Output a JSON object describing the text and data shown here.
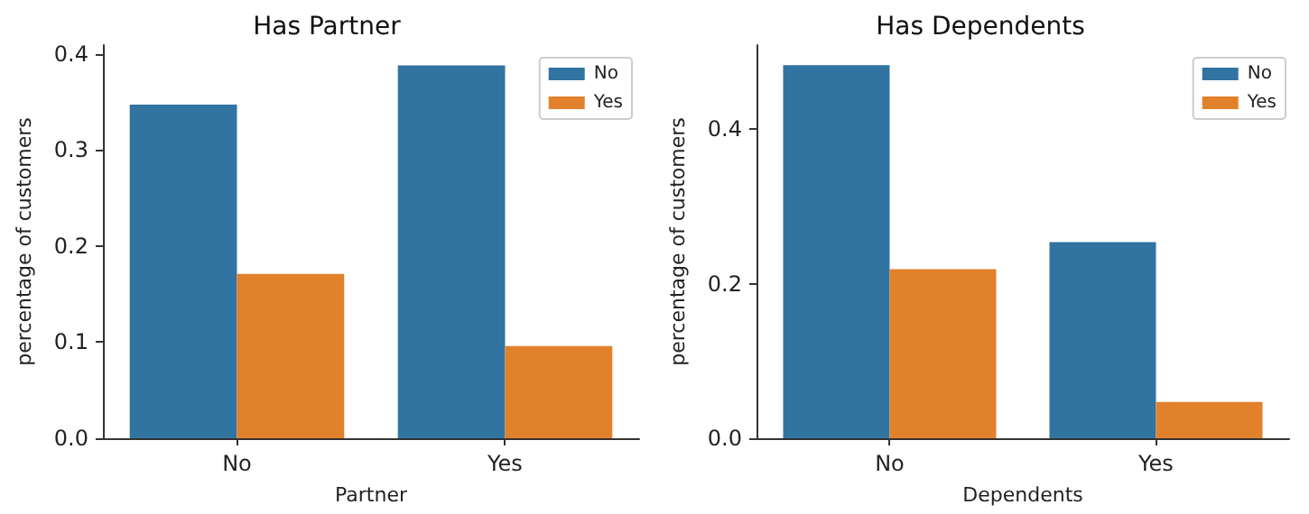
{
  "chart_data": [
    {
      "type": "bar",
      "title": "Has Partner",
      "xlabel": "Partner",
      "ylabel": "percentage of customers",
      "categories": [
        "No",
        "Yes"
      ],
      "series": [
        {
          "name": "No",
          "color": "#3274a1",
          "values": [
            0.347,
            0.388
          ]
        },
        {
          "name": "Yes",
          "color": "#e1812c",
          "values": [
            0.171,
            0.096
          ]
        }
      ],
      "ylim": [
        0,
        0.409
      ],
      "yticks": [
        {
          "value": 0,
          "label": "0.0"
        },
        0.1,
        0.2,
        0.3,
        0.4
      ],
      "legend": "top right",
      "grid": false
    },
    {
      "type": "bar",
      "title": "Has Dependents",
      "xlabel": "Dependents",
      "ylabel": "percentage of customers",
      "categories": [
        "No",
        "Yes"
      ],
      "series": [
        {
          "name": "No",
          "color": "#3274a1",
          "values": [
            0.483,
            0.254
          ]
        },
        {
          "name": "Yes",
          "color": "#e1812c",
          "values": [
            0.219,
            0.047
          ]
        }
      ],
      "ylim": [
        0,
        0.509
      ],
      "yticks": [
        {
          "value": 0,
          "label": "0.0"
        },
        0.2,
        0.4
      ],
      "legend": "top right",
      "grid": false
    }
  ]
}
